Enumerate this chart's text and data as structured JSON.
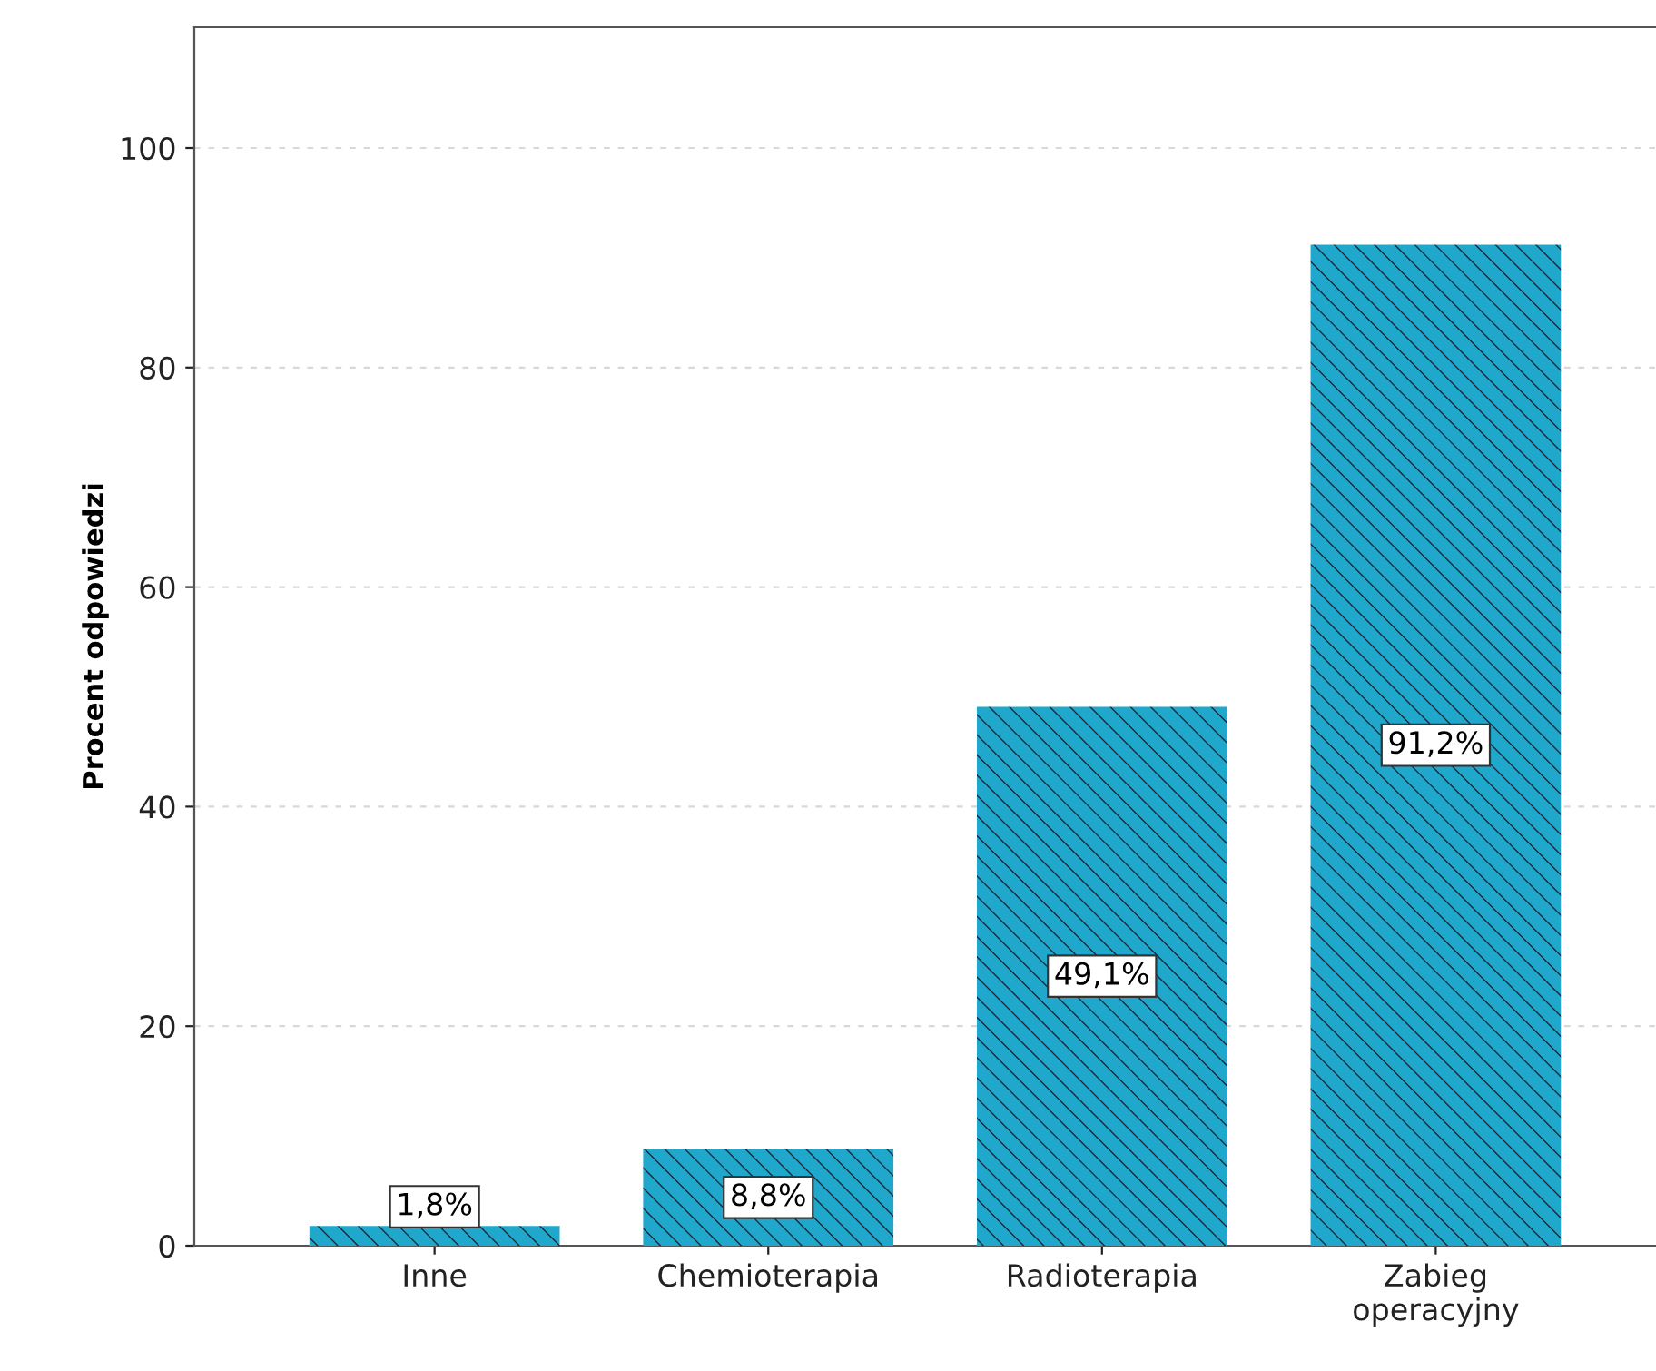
{
  "chart_data": {
    "type": "bar",
    "ylabel": "Procent odpowiedzi",
    "categories": [
      "Inne",
      "Chemioterapia",
      "Radioterapia",
      "Zabieg\noperacyjny"
    ],
    "values": [
      1.8,
      8.8,
      49.1,
      91.2
    ],
    "value_labels": [
      "1,8%",
      "8,8%",
      "49,1%",
      "91,2%"
    ],
    "color": "#1fa8cc",
    "ylim": [
      0,
      111
    ],
    "yticks": [
      0,
      20,
      40,
      60,
      80,
      100
    ],
    "grid": "y"
  }
}
